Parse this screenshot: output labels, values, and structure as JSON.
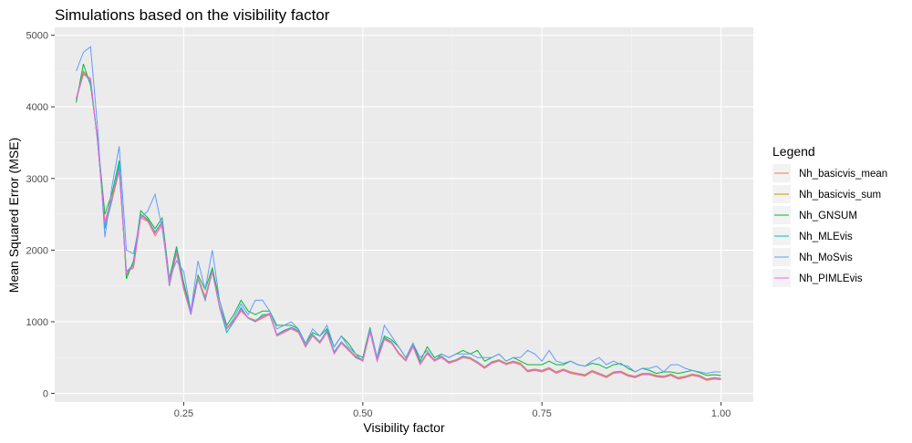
{
  "chart_data": {
    "type": "line",
    "title": "Simulations based on the visibility factor",
    "xlabel": "Visibility factor",
    "ylabel": "Mean Squared Error (MSE)",
    "xlim": [
      0.07,
      1.045
    ],
    "ylim": [
      -120,
      5110
    ],
    "xticks": [
      0.25,
      0.5,
      0.75,
      1.0
    ],
    "xtick_labels": [
      "0.25",
      "0.50",
      "0.75",
      "1.00"
    ],
    "yticks": [
      0,
      1000,
      2000,
      3000,
      4000,
      5000
    ],
    "ytick_labels": [
      "0",
      "1000",
      "2000",
      "3000",
      "4000",
      "5000"
    ],
    "grid": true,
    "legend": {
      "title": "Legend",
      "position": "right"
    },
    "x": [
      0.1,
      0.11,
      0.12,
      0.13,
      0.14,
      0.15,
      0.16,
      0.17,
      0.18,
      0.19,
      0.2,
      0.21,
      0.22,
      0.23,
      0.24,
      0.25,
      0.26,
      0.27,
      0.28,
      0.29,
      0.3,
      0.31,
      0.32,
      0.33,
      0.34,
      0.35,
      0.36,
      0.37,
      0.38,
      0.39,
      0.4,
      0.41,
      0.42,
      0.43,
      0.44,
      0.45,
      0.46,
      0.47,
      0.48,
      0.49,
      0.5,
      0.51,
      0.52,
      0.53,
      0.54,
      0.55,
      0.56,
      0.57,
      0.58,
      0.59,
      0.6,
      0.61,
      0.62,
      0.63,
      0.64,
      0.65,
      0.66,
      0.67,
      0.68,
      0.69,
      0.7,
      0.71,
      0.72,
      0.73,
      0.74,
      0.75,
      0.76,
      0.77,
      0.78,
      0.79,
      0.8,
      0.81,
      0.82,
      0.83,
      0.84,
      0.85,
      0.86,
      0.87,
      0.88,
      0.89,
      0.9,
      0.91,
      0.92,
      0.93,
      0.94,
      0.95,
      0.96,
      0.97,
      0.98,
      0.99,
      1.0
    ],
    "series": [
      {
        "name": "Nh_basicvis_mean",
        "color": "#F8766D",
        "values": [
          4100,
          4450,
          4400,
          3500,
          2350,
          2700,
          3100,
          1700,
          1750,
          2450,
          2400,
          2200,
          2350,
          1500,
          1950,
          1450,
          1100,
          1600,
          1300,
          1700,
          1200,
          900,
          1000,
          1150,
          1050,
          1000,
          1050,
          1100,
          800,
          850,
          900,
          850,
          650,
          800,
          700,
          850,
          550,
          700,
          600,
          500,
          450,
          850,
          450,
          750,
          700,
          550,
          450,
          650,
          400,
          550,
          450,
          500,
          420,
          450,
          500,
          480,
          420,
          350,
          420,
          450,
          400,
          430,
          400,
          300,
          320,
          300,
          340,
          280,
          320,
          280,
          260,
          240,
          300,
          260,
          220,
          280,
          290,
          240,
          220,
          260,
          260,
          230,
          220,
          250,
          200,
          220,
          250,
          230,
          180,
          200,
          190
        ]
      },
      {
        "name": "Nh_basicvis_sum",
        "color": "#B79F00",
        "values": [
          4120,
          4500,
          4380,
          3520,
          2400,
          2750,
          3150,
          1650,
          1800,
          2500,
          2430,
          2250,
          2400,
          1550,
          2000,
          1500,
          1120,
          1620,
          1350,
          1720,
          1220,
          920,
          1020,
          1180,
          1060,
          1020,
          1080,
          1120,
          820,
          870,
          920,
          870,
          670,
          820,
          720,
          870,
          570,
          720,
          620,
          520,
          470,
          870,
          470,
          770,
          720,
          570,
          470,
          670,
          420,
          570,
          470,
          520,
          440,
          470,
          520,
          500,
          440,
          370,
          440,
          470,
          420,
          450,
          420,
          320,
          340,
          320,
          360,
          300,
          340,
          300,
          280,
          260,
          320,
          280,
          240,
          300,
          310,
          260,
          240,
          280,
          280,
          250,
          240,
          270,
          220,
          240,
          270,
          250,
          200,
          220,
          210
        ]
      },
      {
        "name": "Nh_GNSUM",
        "color": "#00BA38",
        "values": [
          4060,
          4600,
          4300,
          3550,
          2500,
          2800,
          3250,
          1600,
          1850,
          2550,
          2450,
          2300,
          2450,
          1600,
          2050,
          1550,
          1150,
          1650,
          1450,
          1750,
          1300,
          950,
          1100,
          1300,
          1150,
          1100,
          1150,
          1150,
          950,
          950,
          950,
          900,
          700,
          850,
          800,
          900,
          650,
          800,
          700,
          550,
          500,
          920,
          500,
          800,
          750,
          650,
          500,
          700,
          450,
          650,
          500,
          550,
          500,
          550,
          600,
          550,
          600,
          450,
          500,
          550,
          450,
          500,
          450,
          400,
          400,
          400,
          450,
          400,
          400,
          450,
          400,
          380,
          420,
          400,
          350,
          400,
          420,
          350,
          300,
          350,
          320,
          280,
          300,
          300,
          280,
          300,
          320,
          290,
          250,
          260,
          250
        ]
      },
      {
        "name": "Nh_MLEvis",
        "color": "#00BFC4",
        "values": [
          4100,
          4480,
          4350,
          3500,
          2300,
          2700,
          3200,
          1700,
          1800,
          2500,
          2420,
          2250,
          2400,
          1500,
          2000,
          1480,
          1100,
          1600,
          1300,
          1700,
          1200,
          850,
          1000,
          1200,
          1050,
          1000,
          1100,
          1100,
          820,
          880,
          920,
          880,
          650,
          820,
          720,
          880,
          580,
          720,
          620,
          500,
          460,
          880,
          460,
          780,
          720,
          560,
          460,
          660,
          420,
          560,
          460,
          520,
          440,
          460,
          520,
          490,
          440,
          360,
          440,
          460,
          410,
          440,
          410,
          310,
          330,
          310,
          350,
          290,
          330,
          290,
          270,
          250,
          310,
          270,
          230,
          290,
          300,
          250,
          230,
          270,
          270,
          240,
          230,
          260,
          210,
          230,
          260,
          240,
          190,
          210,
          200
        ]
      },
      {
        "name": "Nh_MoSvis",
        "color": "#619CFF",
        "values": [
          4500,
          4760,
          4840,
          3700,
          2180,
          2900,
          3450,
          2000,
          1950,
          2450,
          2550,
          2780,
          2300,
          1600,
          1850,
          1700,
          1150,
          1850,
          1450,
          2000,
          1300,
          900,
          1050,
          1250,
          1100,
          1300,
          1300,
          1150,
          900,
          950,
          1000,
          900,
          700,
          900,
          800,
          950,
          650,
          800,
          650,
          550,
          450,
          900,
          500,
          950,
          800,
          650,
          500,
          700,
          500,
          600,
          450,
          550,
          500,
          550,
          550,
          550,
          500,
          500,
          500,
          550,
          450,
          500,
          500,
          600,
          550,
          450,
          600,
          450,
          420,
          450,
          400,
          380,
          450,
          500,
          400,
          450,
          400,
          380,
          300,
          350,
          350,
          380,
          300,
          400,
          400,
          350,
          320,
          300,
          280,
          300,
          300
        ]
      },
      {
        "name": "Nh_PIMLEvis",
        "color": "#F564E3",
        "values": [
          4110,
          4470,
          4390,
          3510,
          2380,
          2720,
          3120,
          1680,
          1780,
          2480,
          2410,
          2230,
          2380,
          1520,
          1980,
          1470,
          1110,
          1610,
          1320,
          1710,
          1210,
          910,
          1010,
          1170,
          1055,
          1010,
          1065,
          1110,
          810,
          860,
          910,
          860,
          660,
          810,
          710,
          860,
          560,
          710,
          610,
          510,
          460,
          860,
          460,
          760,
          710,
          560,
          460,
          660,
          410,
          560,
          460,
          510,
          430,
          460,
          510,
          490,
          430,
          360,
          430,
          460,
          410,
          440,
          410,
          310,
          330,
          310,
          350,
          290,
          330,
          290,
          270,
          250,
          310,
          270,
          230,
          290,
          300,
          250,
          230,
          270,
          270,
          240,
          230,
          260,
          210,
          230,
          260,
          240,
          190,
          210,
          200
        ]
      }
    ]
  }
}
